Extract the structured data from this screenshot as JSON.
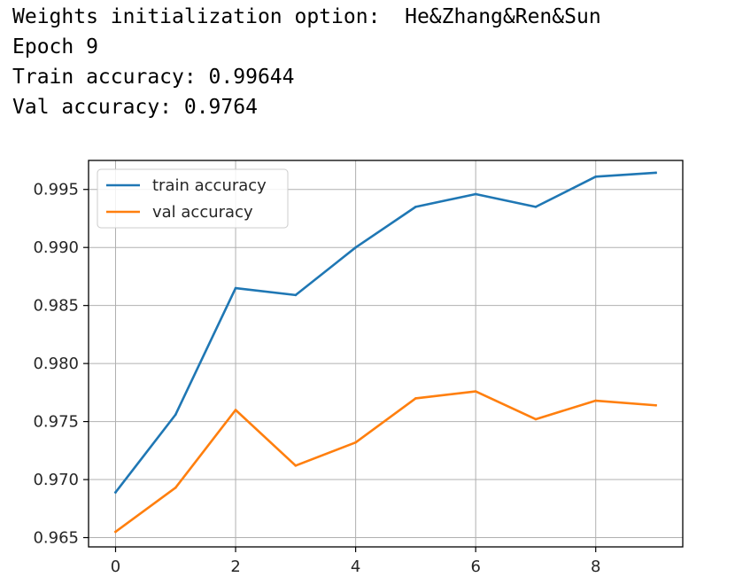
{
  "output": {
    "lines": [
      "Weights initialization option:  He&Zhang&Ren&Sun",
      "Epoch 9",
      "Train accuracy: 0.99644",
      "Val accuracy: 0.9764"
    ]
  },
  "chart_data": {
    "type": "line",
    "title": "",
    "xlabel": "",
    "ylabel": "",
    "x": [
      0,
      1,
      2,
      3,
      4,
      5,
      6,
      7,
      8,
      9
    ],
    "xticks": [
      0,
      2,
      4,
      6,
      8
    ],
    "yticks": [
      0.965,
      0.97,
      0.975,
      0.98,
      0.985,
      0.99,
      0.995
    ],
    "xlim": [
      -0.45,
      9.45
    ],
    "ylim": [
      0.9642,
      0.9975
    ],
    "grid": true,
    "legend_position": "upper-left",
    "series": [
      {
        "name": "train accuracy",
        "color": "#1f77b4",
        "values": [
          0.9689,
          0.9756,
          0.9865,
          0.9859,
          0.99,
          0.9935,
          0.9946,
          0.9935,
          0.9961,
          0.99644
        ]
      },
      {
        "name": "val accuracy",
        "color": "#ff7f0e",
        "values": [
          0.9655,
          0.9693,
          0.976,
          0.9712,
          0.9732,
          0.977,
          0.9776,
          0.9752,
          0.9768,
          0.9764
        ]
      }
    ]
  }
}
